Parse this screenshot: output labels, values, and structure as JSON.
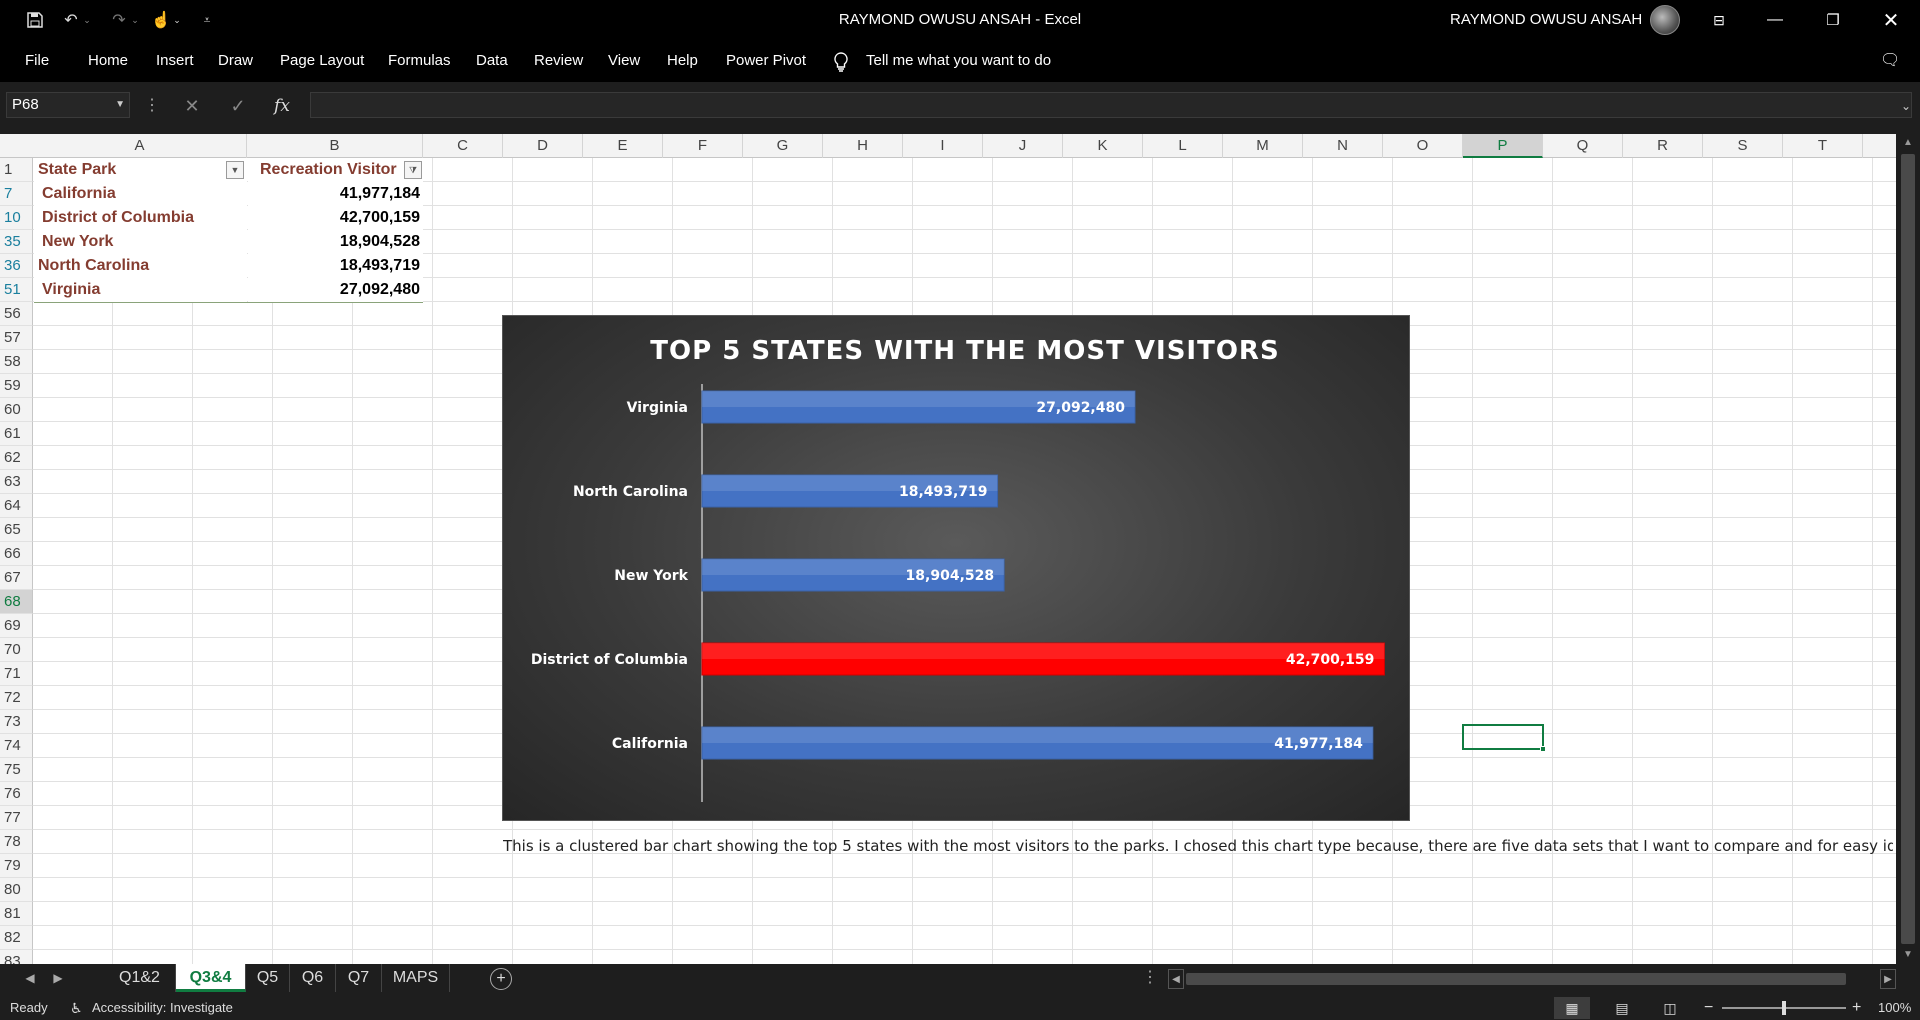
{
  "window": {
    "title": "RAYMOND OWUSU ANSAH  -  Excel",
    "user": "RAYMOND OWUSU ANSAH",
    "controls": [
      "minimize",
      "restore",
      "close"
    ]
  },
  "quick_access": [
    "save-icon",
    "undo-icon",
    "redo-icon",
    "touch-mode-icon",
    "customize-icon"
  ],
  "menu": {
    "items": [
      "File",
      "Home",
      "Insert",
      "Draw",
      "Page Layout",
      "Formulas",
      "Data",
      "Review",
      "View",
      "Help",
      "Power Pivot"
    ],
    "tell_me": "Tell me what you want to do"
  },
  "formula_bar": {
    "name_box": "P68",
    "fx_label": "fx",
    "formula": ""
  },
  "columns": [
    "A",
    "B",
    "C",
    "D",
    "E",
    "F",
    "G",
    "H",
    "I",
    "J",
    "K",
    "L",
    "M",
    "N",
    "O",
    "P",
    "Q",
    "R",
    "S",
    "T"
  ],
  "selected_column": "P",
  "rows": [
    "1",
    "7",
    "10",
    "35",
    "36",
    "51",
    "56",
    "57",
    "58",
    "59",
    "60",
    "61",
    "62",
    "63",
    "64",
    "65",
    "66",
    "67",
    "68",
    "69",
    "70",
    "71",
    "72",
    "73",
    "74",
    "75",
    "76",
    "77",
    "78",
    "79",
    "80",
    "81",
    "82",
    "83"
  ],
  "selected_row": "68",
  "table": {
    "headers": [
      "State Park",
      "Recreation Visitor"
    ],
    "rows": [
      {
        "park": "California",
        "visitors": "41,977,184"
      },
      {
        "park": "District of Columbia",
        "visitors": "42,700,159"
      },
      {
        "park": "New York",
        "visitors": "18,904,528"
      },
      {
        "park": "North Carolina",
        "visitors": "18,493,719"
      },
      {
        "park": "Virginia",
        "visitors": "27,092,480"
      }
    ]
  },
  "chart_data": {
    "type": "bar",
    "orientation": "horizontal",
    "title": "TOP 5 STATES WITH THE MOST VISITORS",
    "categories": [
      "Virginia",
      "North Carolina",
      "New York",
      "District of Columbia",
      "California"
    ],
    "values": [
      27092480,
      18493719,
      18904528,
      42700159,
      41977184
    ],
    "labels": [
      "27,092,480",
      "18,493,719",
      "18,904,528",
      "42,700,159",
      "41,977,184"
    ],
    "highlight": "District of Columbia",
    "colors": {
      "bar": "#4472c4",
      "highlight": "#ff0000",
      "background": "#3a3a3a",
      "text": "#ffffff"
    },
    "xlim": [
      0,
      43800000
    ],
    "grid": false,
    "legend": "none"
  },
  "description": "This is a clustered bar chart showing the top 5 states with the most visitors to the parks. I chosed this chart type because, there are five data sets that I want to compare and for easy identifica",
  "sheet_tabs": [
    "Q1&2",
    "Q3&4",
    "Q5",
    "Q6",
    "Q7",
    "MAPS"
  ],
  "active_tab": "Q3&4",
  "status": {
    "ready": "Ready",
    "accessibility": "Accessibility: Investigate",
    "zoom": "100%"
  },
  "colors": {
    "accent": "#107c41",
    "park_text": "#843c30"
  }
}
